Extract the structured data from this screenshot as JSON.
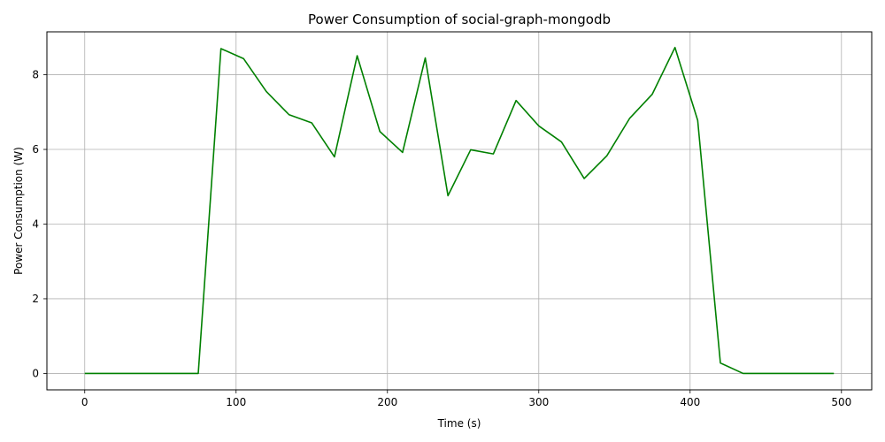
{
  "chart_data": {
    "type": "line",
    "title": "Power Consumption of social-graph-mongodb",
    "xlabel": "Time (s)",
    "ylabel": "Power Consumption (W)",
    "xlim": [
      -25,
      520
    ],
    "ylim": [
      -0.44,
      9.15
    ],
    "xticks": [
      0,
      100,
      200,
      300,
      400,
      500
    ],
    "yticks": [
      0,
      2,
      4,
      6,
      8
    ],
    "grid": true,
    "series": [
      {
        "color": "#008000",
        "x": [
          0,
          15,
          30,
          45,
          60,
          75,
          90,
          105,
          120,
          135,
          150,
          165,
          180,
          195,
          210,
          225,
          240,
          255,
          270,
          285,
          300,
          315,
          330,
          345,
          360,
          375,
          390,
          405,
          420,
          435,
          450,
          465,
          480,
          495
        ],
        "y": [
          0,
          0,
          0,
          0,
          0,
          0,
          8.7,
          8.43,
          7.55,
          6.93,
          6.71,
          5.8,
          8.51,
          6.48,
          5.92,
          8.45,
          4.76,
          5.99,
          5.88,
          7.31,
          6.63,
          6.2,
          5.22,
          5.83,
          6.83,
          7.48,
          8.73,
          6.78,
          0.28,
          0,
          0,
          0,
          0,
          0
        ]
      }
    ]
  }
}
